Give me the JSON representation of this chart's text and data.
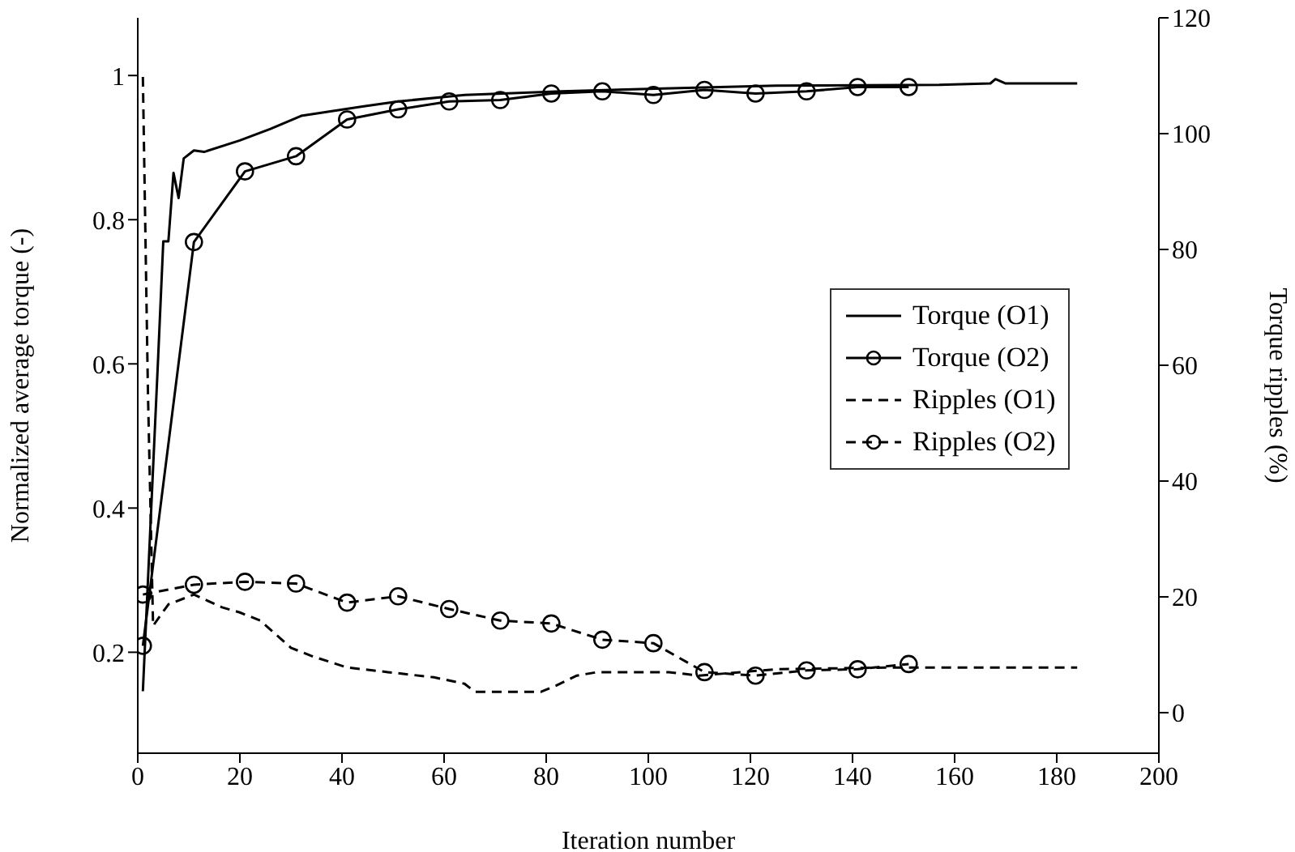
{
  "chart_data": {
    "type": "line",
    "xlabel": "Iteration number",
    "ylabel": "Normalized average torque (-)",
    "y2label": "Torque ripples (%)",
    "xlim": [
      0,
      200
    ],
    "xticks": [
      0,
      20,
      40,
      60,
      80,
      100,
      120,
      140,
      160,
      180,
      200
    ],
    "ylim": [
      0.06,
      1.08
    ],
    "yticks": [
      0.2,
      0.4,
      0.6,
      0.8,
      1
    ],
    "y2lim": [
      -7,
      120
    ],
    "y2ticks": [
      0,
      20,
      40,
      60,
      80,
      100,
      120
    ],
    "legend": "right",
    "series": [
      {
        "name": "Torque (O1)",
        "color": "#000000",
        "line_style": "solid",
        "marker": "none",
        "x": [
          1,
          4,
          5,
          6,
          7,
          8,
          9,
          11,
          13,
          20,
          26,
          32,
          44,
          51,
          64,
          83,
          103,
          125,
          157,
          167,
          168,
          170,
          184
        ],
        "values": [
          0.146,
          0.61,
          0.77,
          0.77,
          0.865,
          0.83,
          0.885,
          0.896,
          0.894,
          0.91,
          0.926,
          0.944,
          0.957,
          0.964,
          0.973,
          0.978,
          0.982,
          0.986,
          0.987,
          0.989,
          0.995,
          0.989,
          0.989
        ]
      },
      {
        "name": "Torque (O2)",
        "color": "#000000",
        "line_style": "solid",
        "marker": "circle",
        "x": [
          1,
          11,
          21,
          31,
          41,
          51,
          61,
          71,
          81,
          91,
          101,
          111,
          121,
          131,
          141,
          151
        ],
        "values": [
          0.209,
          0.769,
          0.867,
          0.888,
          0.939,
          0.953,
          0.964,
          0.966,
          0.975,
          0.978,
          0.973,
          0.98,
          0.975,
          0.978,
          0.984,
          0.984
        ]
      },
      {
        "name": "Ripples (O1)",
        "color": "#000000",
        "line_style": "dashed",
        "marker": "none",
        "axis": "y2",
        "x": [
          1,
          2,
          3,
          6,
          11,
          16.5,
          20,
          24,
          30,
          34,
          41,
          49,
          58,
          64,
          66,
          72,
          79,
          82,
          86,
          90,
          94,
          104,
          110,
          125,
          147,
          184
        ],
        "values": [
          109.8,
          55,
          15,
          18.7,
          20.4,
          18.2,
          17.3,
          15.9,
          11.2,
          9.8,
          7.8,
          7,
          6.1,
          5,
          3.6,
          3.6,
          3.6,
          4.7,
          6.4,
          7,
          7,
          7,
          6.4,
          7.5,
          7.8,
          7.8
        ]
      },
      {
        "name": "Ripples (O2)",
        "color": "#000000",
        "line_style": "dashed",
        "marker": "circle",
        "axis": "y2",
        "x": [
          1,
          11,
          21,
          31,
          41,
          51,
          61,
          71,
          81,
          91,
          101,
          111,
          121,
          131,
          141,
          151
        ],
        "values": [
          20.4,
          22.1,
          22.6,
          22.3,
          19,
          20.1,
          17.9,
          15.9,
          15.4,
          12.6,
          12,
          7,
          6.4,
          7.3,
          7.5,
          8.4
        ]
      }
    ]
  }
}
